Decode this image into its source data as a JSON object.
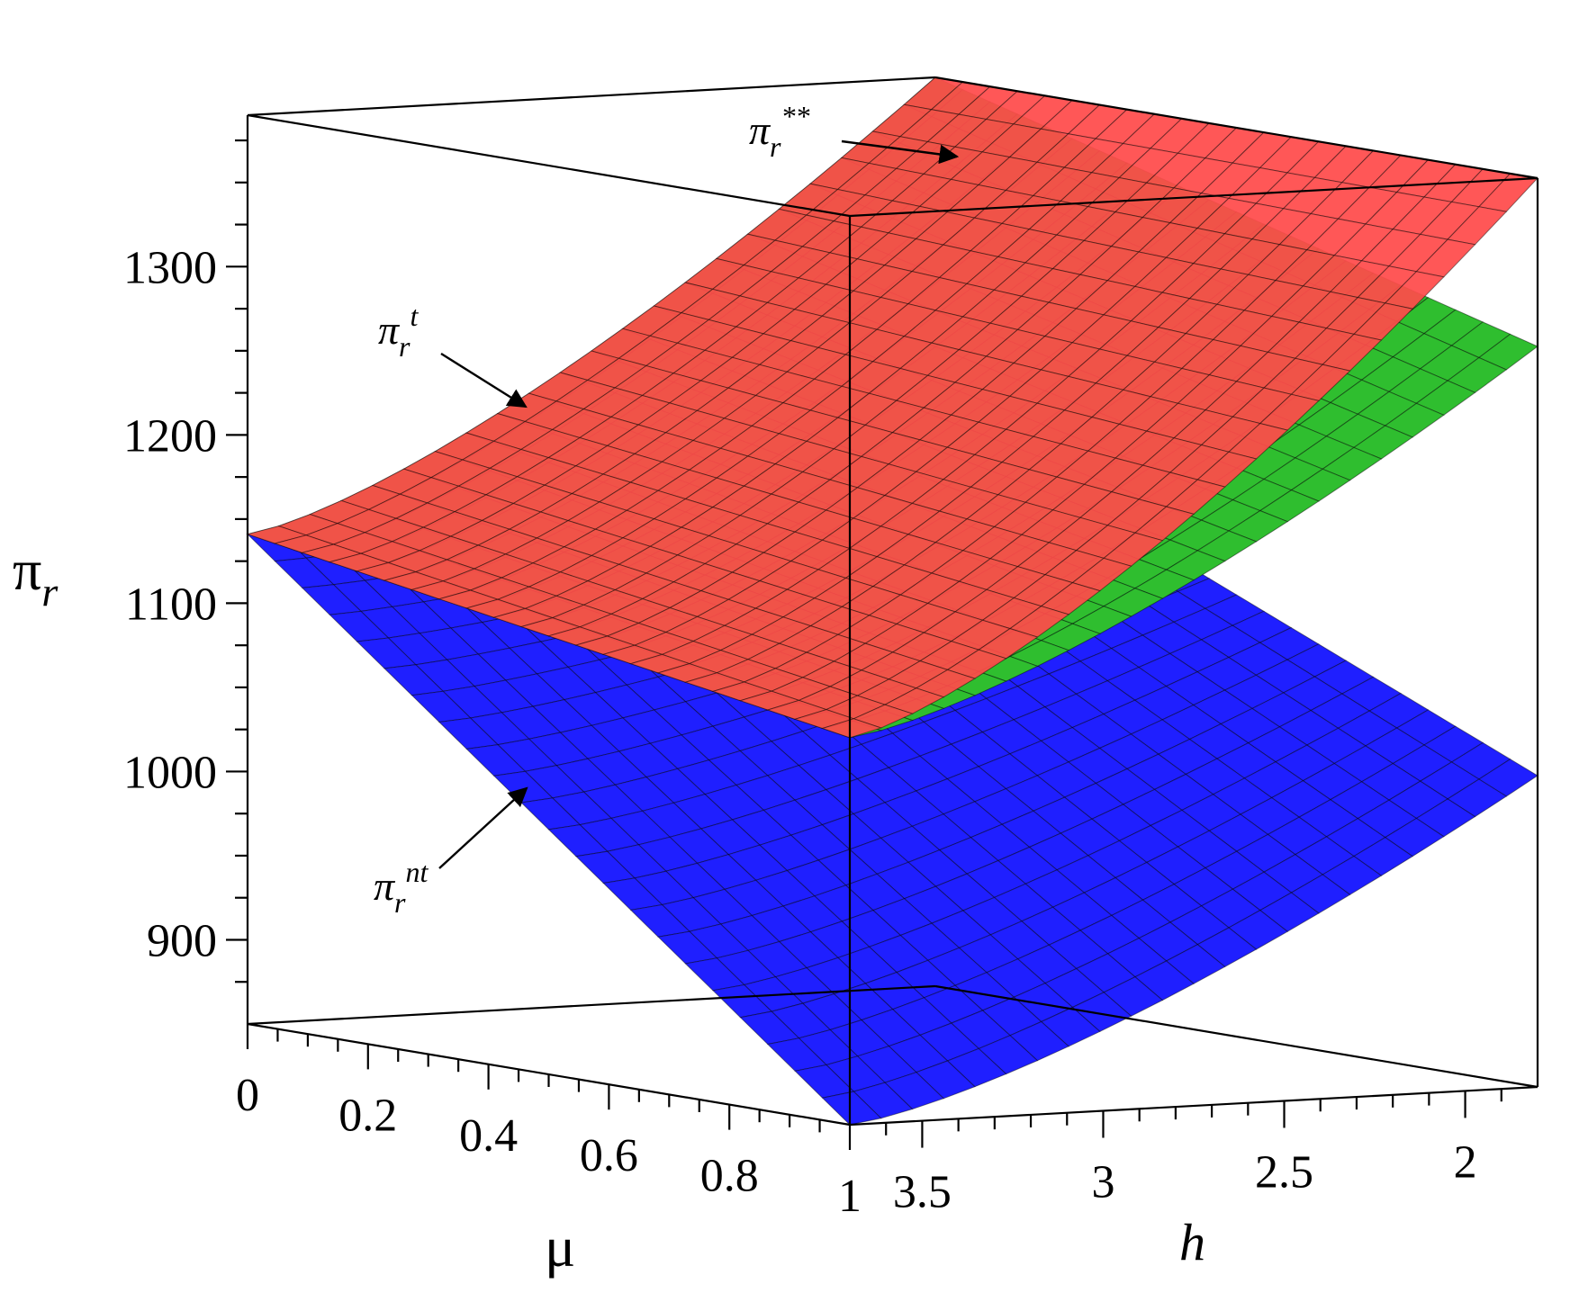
{
  "chart_data": {
    "type": "surface3d",
    "axes": {
      "z": {
        "label": "πr",
        "label_base": "π",
        "label_sub": "r",
        "ticks": [
          900,
          1000,
          1100,
          1200,
          1300
        ],
        "tick_labels": [
          "900",
          "1000",
          "1100",
          "1200",
          "1300"
        ],
        "range": [
          850,
          1390
        ]
      },
      "mu": {
        "label": "μ",
        "ticks": [
          0,
          0.2,
          0.4,
          0.6,
          0.8,
          1
        ],
        "tick_labels": [
          "0",
          "0.2",
          "0.4",
          "0.6",
          "0.8",
          "1"
        ],
        "range": [
          0,
          1
        ]
      },
      "h": {
        "label": "h",
        "ticks": [
          3.5,
          3,
          2.5,
          2
        ],
        "tick_labels": [
          "3.5",
          "3",
          "2.5",
          "2"
        ],
        "range": [
          1.8,
          3.7
        ]
      }
    },
    "series": [
      {
        "name": "πr**",
        "base": "π",
        "sub": "r",
        "sup": "**",
        "color": "#ff4a4a",
        "corners": {
          "mu0_h3.7": 1141,
          "mu1_h3.7": 1080,
          "mu0_h1.8": 1390,
          "mu1_h1.8": 1390
        }
      },
      {
        "name": "πr^t",
        "base": "π",
        "sub": "r",
        "sup": "t",
        "color": "#2fbe2f",
        "corners": {
          "mu0_h3.7": 1141,
          "mu1_h3.7": 1080,
          "mu0_h1.8": 1390,
          "mu1_h1.8": 1290
        }
      },
      {
        "name": "πr^nt",
        "base": "π",
        "sub": "r",
        "sup": "nt",
        "color": "#1f1fff",
        "corners": {
          "mu0_h3.7": 1141,
          "mu1_h3.7": 850,
          "mu0_h1.8": 1190,
          "mu1_h1.8": 1035
        }
      }
    ]
  }
}
